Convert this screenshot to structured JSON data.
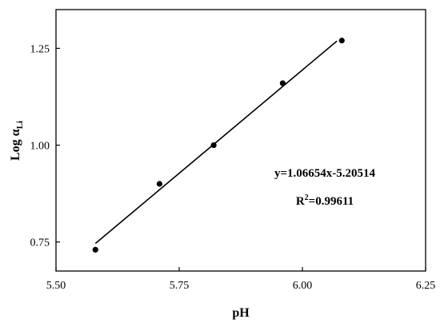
{
  "chart_data": {
    "type": "scatter",
    "xlabel": "pH",
    "ylabel": {
      "main": "Log α",
      "subscript": "Li"
    },
    "xlim": [
      5.5,
      6.25
    ],
    "ylim": [
      0.675,
      1.35
    ],
    "x_ticks": [
      {
        "value": 5.5,
        "label": "5.50"
      },
      {
        "value": 5.75,
        "label": "5.75"
      },
      {
        "value": 6.0,
        "label": "6.00"
      },
      {
        "value": 6.25,
        "label": "6.25"
      }
    ],
    "y_ticks": [
      {
        "value": 0.75,
        "label": "0.75"
      },
      {
        "value": 1.0,
        "label": "1.00"
      },
      {
        "value": 1.25,
        "label": "1.25"
      }
    ],
    "series": [
      {
        "points": [
          {
            "x": 5.58,
            "y": 0.73
          },
          {
            "x": 5.71,
            "y": 0.9
          },
          {
            "x": 5.82,
            "y": 1.0
          },
          {
            "x": 5.96,
            "y": 1.16
          },
          {
            "x": 6.08,
            "y": 1.27
          }
        ]
      }
    ],
    "fit_line": {
      "slope": 1.06654,
      "intercept": -5.20514,
      "x_range": [
        5.58,
        6.07
      ]
    },
    "annotations": {
      "equation": "y=1.06654x-5.20514",
      "r2_label": "R",
      "r2_exponent": "2",
      "r2_value": "=0.99611"
    },
    "grid": false,
    "legend": "none"
  }
}
